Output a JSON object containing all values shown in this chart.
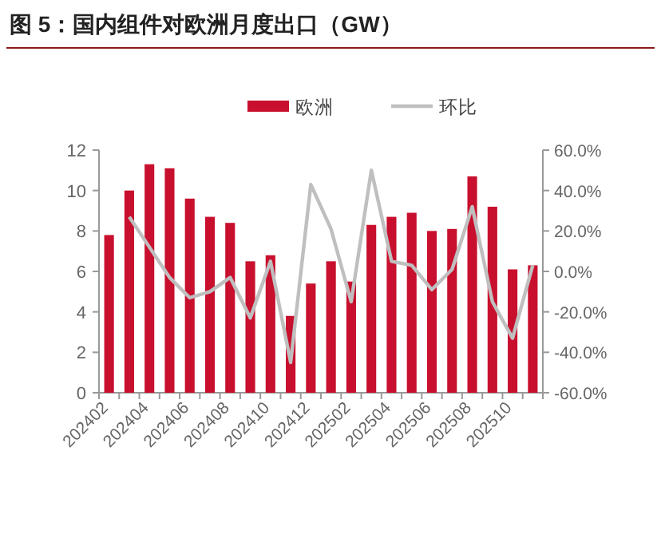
{
  "chart_data": {
    "type": "bar",
    "title": "图 5：国内组件对欧洲月度出口（GW）",
    "categories": [
      "202402",
      null,
      "202404",
      null,
      "202406",
      null,
      "202408",
      null,
      "202410",
      null,
      "202412",
      null,
      "202502",
      null,
      "202504",
      null,
      "202506",
      null,
      "202508",
      null,
      "202510",
      null
    ],
    "series": [
      {
        "name": "欧洲",
        "color": "#c8102e",
        "values": [
          7.8,
          10.0,
          11.3,
          11.1,
          9.6,
          8.7,
          8.4,
          6.5,
          6.8,
          3.8,
          5.4,
          6.5,
          5.5,
          8.3,
          8.7,
          8.9,
          8.0,
          8.1,
          10.7,
          9.2,
          6.1,
          6.3
        ]
      },
      {
        "name": "环比",
        "type": "line",
        "axis": "y2",
        "color": "#bfbfbf",
        "values": [
          null,
          27,
          12,
          -3,
          -13,
          -10,
          -3,
          -23,
          5,
          -45,
          43,
          21,
          -15,
          50,
          5,
          3,
          -9,
          1,
          32,
          -15,
          -33,
          3
        ]
      }
    ],
    "ylim": [
      0,
      12
    ],
    "yticks": [
      0,
      2,
      4,
      6,
      8,
      10,
      12
    ],
    "y2lim": [
      -60,
      60
    ],
    "y2ticks": [
      {
        "value": -60,
        "label": "-60.0%"
      },
      {
        "value": -40,
        "label": "-40.0%"
      },
      {
        "value": -20,
        "label": "-20.0%"
      },
      {
        "value": 0,
        "label": "0.0%"
      },
      {
        "value": 20,
        "label": "20.0%"
      },
      {
        "value": 40,
        "label": "40.0%"
      },
      {
        "value": 60,
        "label": "60.0%"
      }
    ],
    "legend": "top",
    "grid": false
  }
}
